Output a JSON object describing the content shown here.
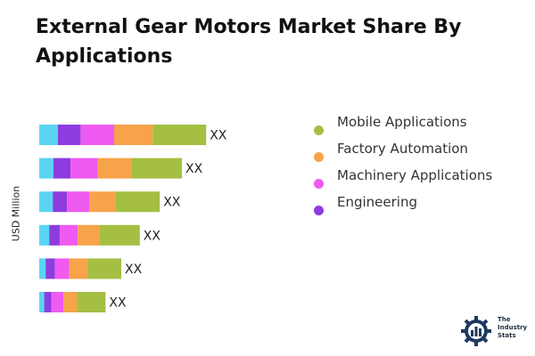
{
  "title": "External Gear Motors Market Share By Applications",
  "logo": {
    "line1": "The",
    "line2": "Industry",
    "line3": "Stats"
  },
  "chart_data": {
    "type": "bar",
    "orientation": "horizontal",
    "stacked": true,
    "ylabel": "USD Million",
    "legend_position": "right",
    "grid": false,
    "data_labels": [
      "XX",
      "XX",
      "XX",
      "XX",
      "XX",
      "XX"
    ],
    "series": [
      {
        "name": "",
        "color": "#5ad5f2",
        "values": [
          26,
          20,
          19,
          14,
          9,
          7
        ]
      },
      {
        "name": "Engineering",
        "color": "#8e3ce0",
        "values": [
          32,
          24,
          20,
          15,
          13,
          10
        ]
      },
      {
        "name": "Machinery Applications",
        "color": "#ef5af0",
        "values": [
          47,
          38,
          31,
          25,
          20,
          17
        ]
      },
      {
        "name": "Factory Automation",
        "color": "#f6a34a",
        "values": [
          54,
          48,
          37,
          31,
          26,
          19
        ]
      },
      {
        "name": "Mobile Applications",
        "color": "#a4bf42",
        "values": [
          75,
          70,
          62,
          56,
          47,
          40
        ]
      }
    ],
    "legend_order": [
      "Mobile Applications",
      "Factory Automation",
      "Machinery Applications",
      "Engineering"
    ]
  }
}
